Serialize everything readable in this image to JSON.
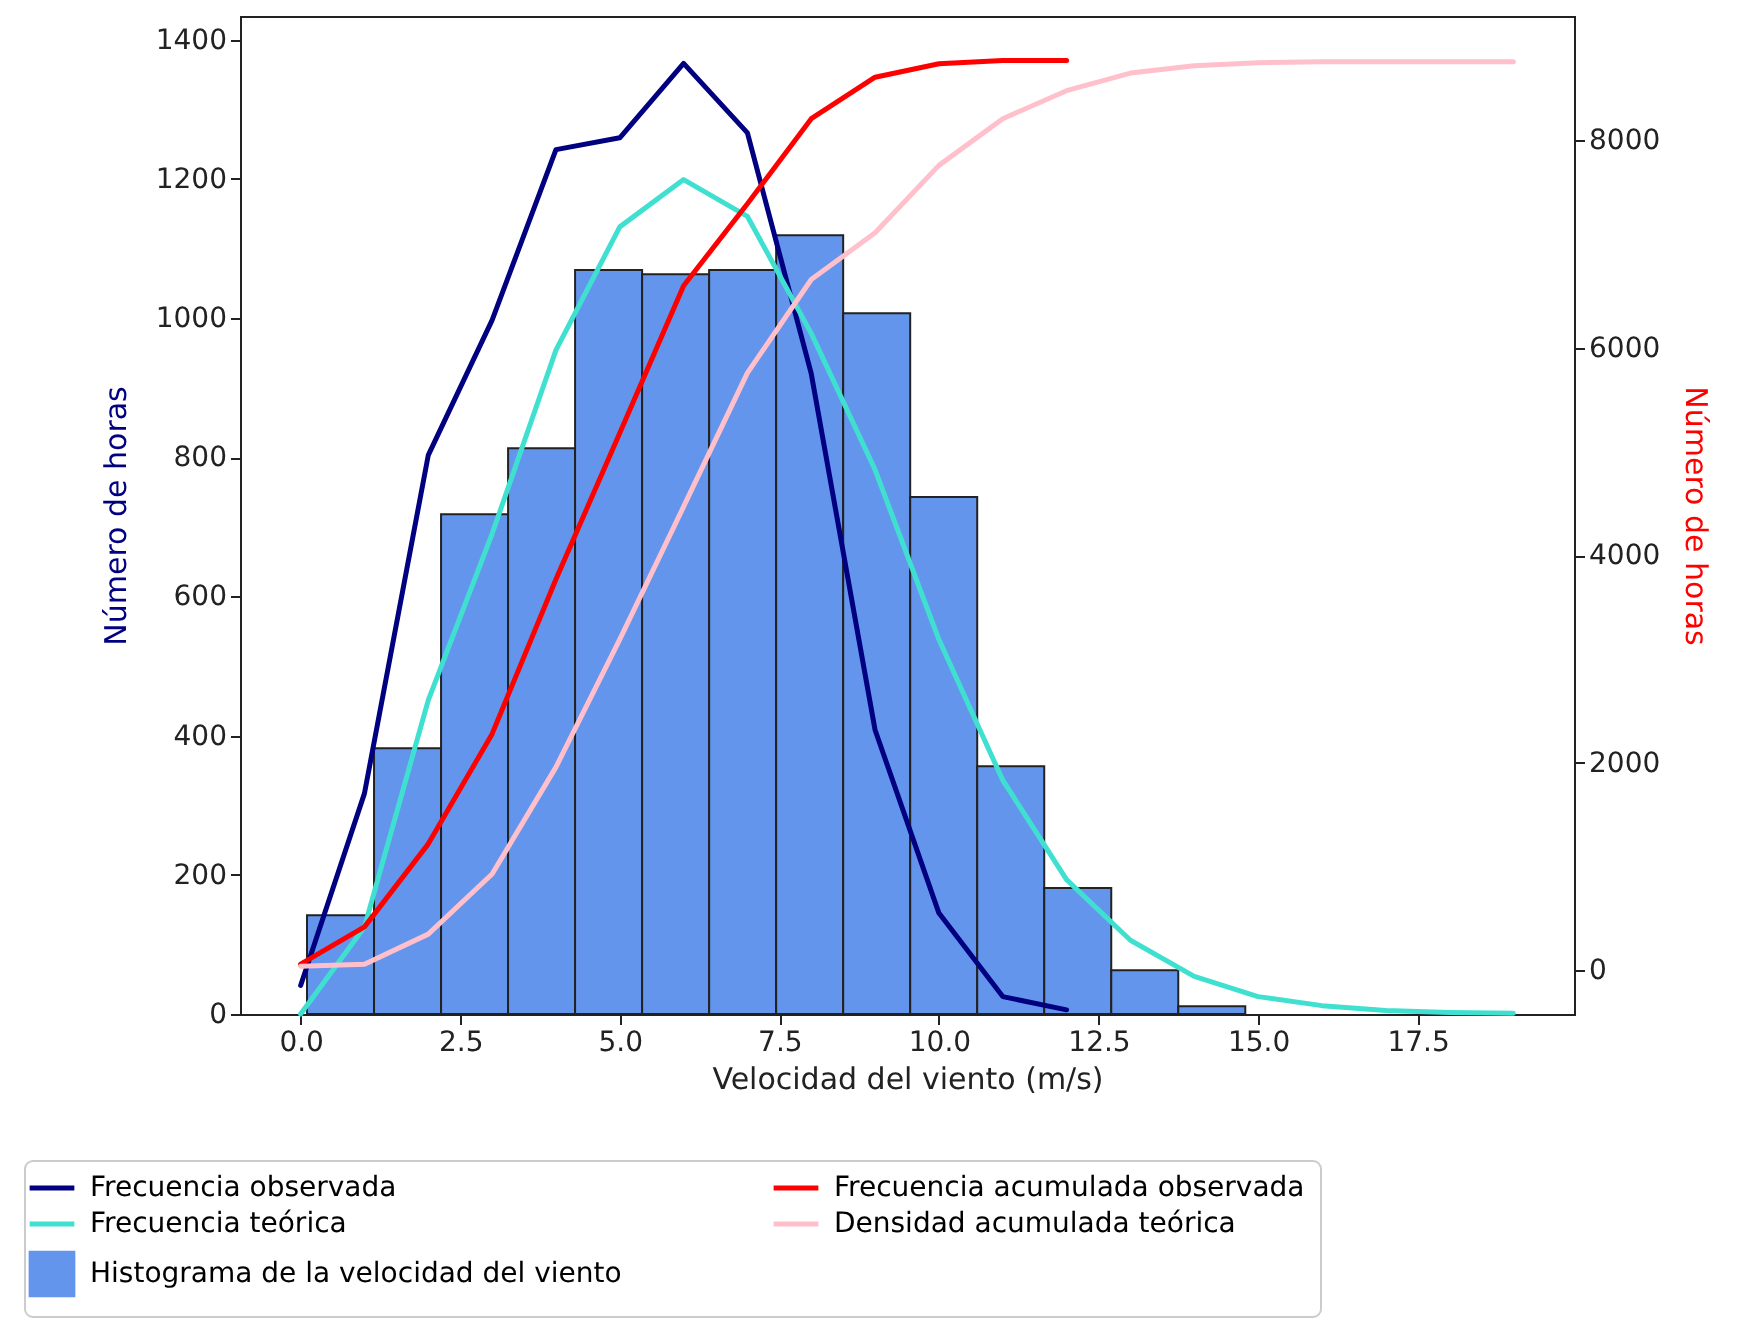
{
  "chart_data": {
    "type": "histogram",
    "xlabel": "Velocidad del viento (m/s)",
    "ylabel": "Número de horas",
    "y2label": "Número de horas",
    "bins": [
      0.1,
      1.15,
      2.2,
      3.25,
      4.3,
      5.35,
      6.4,
      7.45,
      8.5,
      9.55,
      10.6,
      11.65,
      12.7,
      13.75,
      14.8
    ],
    "xlim": [
      -0.95,
      19.95
    ],
    "xticks": [
      {
        "value": 0,
        "label": "0.0"
      },
      {
        "value": 2.5,
        "label": "2.5"
      },
      {
        "value": 5,
        "label": "5.0"
      },
      {
        "value": 7.5,
        "label": "7.5"
      },
      {
        "value": 10,
        "label": "10.0"
      },
      {
        "value": 12.5,
        "label": "12.5"
      },
      {
        "value": 15,
        "label": "15.0"
      },
      {
        "value": 17.5,
        "label": "17.5"
      }
    ],
    "ylim": [
      0,
      1434
    ],
    "yticks": [
      0,
      200,
      400,
      600,
      800,
      1000,
      1200,
      1400
    ],
    "y2lim": [
      -420,
      9200
    ],
    "y2ticks": [
      0,
      2000,
      4000,
      6000,
      8000
    ],
    "legend": "bottom",
    "grid": false,
    "series": [
      {
        "name": "Frecuencia observada",
        "type": "line",
        "color": "#000080",
        "x": [
          0,
          1,
          2,
          3,
          4,
          5,
          6,
          7,
          8,
          9,
          10,
          11,
          12
        ],
        "values": [
          41,
          317,
          803,
          997,
          1242,
          1259,
          1366,
          1266,
          920,
          408,
          145,
          25,
          6
        ]
      },
      {
        "name": "Frecuencia teórica",
        "type": "line",
        "color": "#40e0d0",
        "x": [
          0,
          1,
          2,
          3,
          4,
          5,
          6,
          7,
          8,
          9,
          10,
          11,
          12,
          13,
          14,
          15,
          16,
          17,
          18,
          19
        ],
        "values": [
          0,
          125,
          451,
          690,
          954,
          1131,
          1199,
          1146,
          978,
          782,
          538,
          336,
          193,
          106,
          54,
          25,
          12,
          5,
          2,
          1
        ]
      },
      {
        "name": "Histograma de la velocidad del viento",
        "color": "#6495ed",
        "values": [
          142,
          382,
          718,
          813,
          1069,
          1063,
          1069,
          1119,
          1007,
          743,
          356,
          181,
          63,
          11
        ]
      },
      {
        "name": "Frecuencia acumulada observada",
        "type": "line",
        "axis": "y2",
        "color": "#ff0000",
        "x": [
          0,
          1,
          2,
          3,
          4,
          5,
          6,
          7,
          8,
          9,
          10,
          11,
          12
        ],
        "values": [
          60,
          420,
          1220,
          2280,
          3770,
          5180,
          6600,
          7390,
          8210,
          8610,
          8740,
          8770,
          8770
        ]
      },
      {
        "name": "Densidad acumulada teórica",
        "type": "line",
        "axis": "y2",
        "color": "#ffc0cb",
        "x": [
          0,
          1,
          2,
          3,
          4,
          5,
          6,
          7,
          8,
          9,
          10,
          11,
          12,
          13,
          14,
          15,
          16,
          17,
          18,
          19
        ],
        "values": [
          40,
          60,
          350,
          930,
          1960,
          3190,
          4470,
          5760,
          6660,
          7110,
          7760,
          8210,
          8480,
          8650,
          8720,
          8750,
          8760,
          8760,
          8760,
          8760
        ]
      }
    ]
  }
}
